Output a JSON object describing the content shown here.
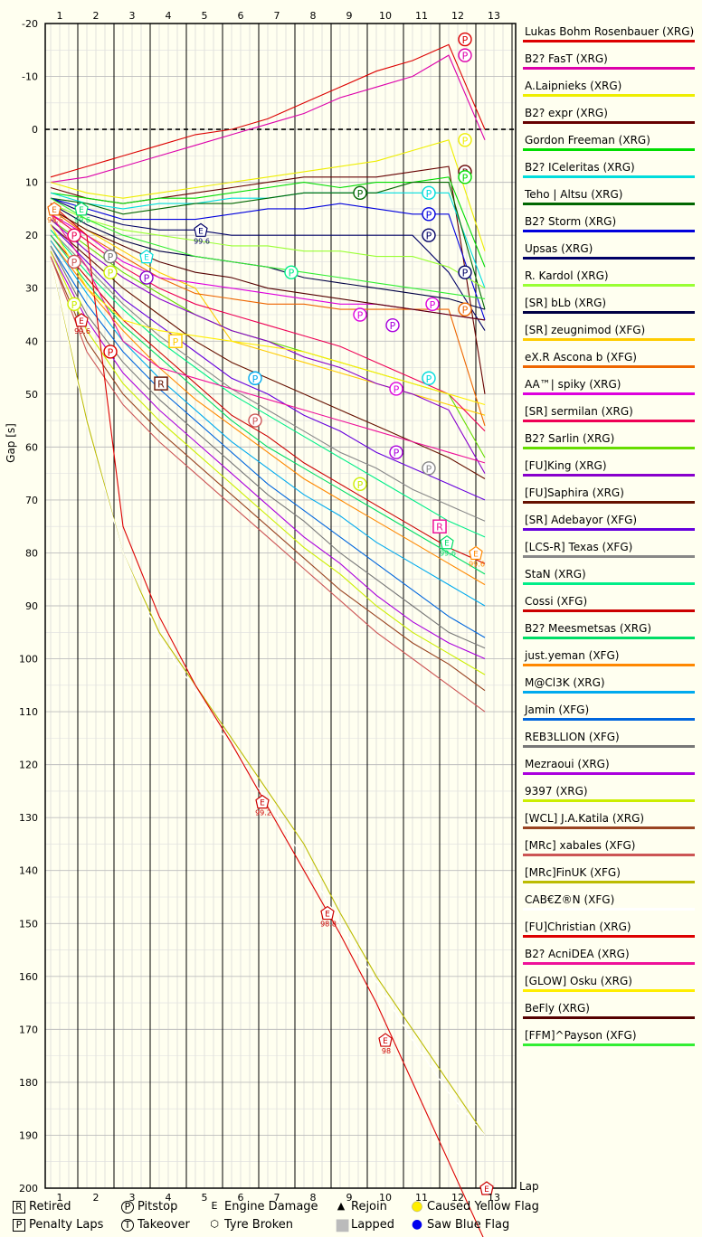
{
  "chart_data": {
    "type": "line",
    "title": "",
    "xlabel": "Lap",
    "ylabel": "Gap [s]",
    "xlim": [
      0.6,
      13.6
    ],
    "ylim": [
      -20,
      200
    ],
    "y_inverted": true,
    "x_ticks": [
      1,
      2,
      3,
      4,
      5,
      6,
      7,
      8,
      9,
      10,
      11,
      12,
      13
    ],
    "y_ticks": [
      -20,
      -10,
      0,
      10,
      20,
      30,
      40,
      50,
      60,
      70,
      80,
      90,
      100,
      110,
      120,
      130,
      140,
      150,
      160,
      170,
      180,
      190,
      200
    ],
    "grid": true,
    "legend_position": "right",
    "series": [
      {
        "name": "Lukas Bohm Rosenbauer (XRG)",
        "color": "#dd0000",
        "values": [
          9,
          7,
          5,
          3,
          1,
          0,
          -2,
          -5,
          -8,
          -11,
          -13,
          -16,
          0
        ]
      },
      {
        "name": "B2? FasT (XRG)",
        "color": "#dd00aa",
        "values": [
          10,
          9,
          7,
          5,
          3,
          1,
          -1,
          -3,
          -6,
          -8,
          -10,
          -14,
          2
        ]
      },
      {
        "name": "A.Laipnieks (XRG)",
        "color": "#eeee00",
        "values": [
          10,
          12,
          13,
          12,
          11,
          10,
          9,
          8,
          7,
          6,
          4,
          2,
          23
        ]
      },
      {
        "name": "B2? expr (XRG)",
        "color": "#660000",
        "values": [
          11,
          13,
          14,
          13,
          12,
          11,
          10,
          9,
          9,
          9,
          8,
          7,
          50
        ]
      },
      {
        "name": "Gordon Freeman (XRG)",
        "color": "#00dd00",
        "values": [
          12,
          13,
          14,
          13,
          13,
          12,
          11,
          10,
          11,
          10,
          10,
          9,
          26
        ]
      },
      {
        "name": "B2? ICeleritas (XRG)",
        "color": "#00dddd",
        "values": [
          12,
          14,
          15,
          14,
          14,
          13,
          13,
          12,
          12,
          12,
          12,
          12,
          30
        ]
      },
      {
        "name": "Teho | Altsu (XRG)",
        "color": "#006600",
        "values": [
          13,
          14,
          16,
          15,
          14,
          14,
          13,
          12,
          12,
          12,
          10,
          10,
          34
        ]
      },
      {
        "name": "B2? Storm (XRG)",
        "color": "#0000dd",
        "values": [
          13,
          15,
          17,
          17,
          17,
          16,
          15,
          15,
          14,
          15,
          16,
          16,
          36
        ]
      },
      {
        "name": "Upsas (XRG)",
        "color": "#000066",
        "values": [
          13,
          16,
          18,
          19,
          19,
          20,
          20,
          20,
          20,
          20,
          20,
          27,
          38
        ]
      },
      {
        "name": "R. Kardol (XRG)",
        "color": "#99ff33",
        "values": [
          14,
          17,
          19,
          20,
          21,
          22,
          22,
          23,
          23,
          24,
          24,
          26,
          30
        ]
      },
      {
        "name": "[SR] bLb (XRG)",
        "color": "#000044",
        "values": [
          14,
          18,
          21,
          23,
          24,
          25,
          26,
          28,
          29,
          30,
          31,
          32,
          34
        ]
      },
      {
        "name": "[SR] zeugnimod (XFG)",
        "color": "#ffcc00",
        "values": [
          15,
          19,
          23,
          27,
          30,
          40,
          42,
          44,
          46,
          48,
          50,
          52,
          54
        ]
      },
      {
        "name": "eX.R Ascona b (XFG)",
        "color": "#ee6600",
        "values": [
          15,
          20,
          24,
          28,
          31,
          32,
          33,
          33,
          34,
          34,
          34,
          34,
          56
        ]
      },
      {
        "name": "AA™| spiky (XRG)",
        "color": "#dd00dd",
        "values": [
          16,
          20,
          25,
          28,
          29,
          30,
          31,
          32,
          33,
          33,
          34,
          35,
          36
        ]
      },
      {
        "name": "[SR] sermilan (XRG)",
        "color": "#ee0055",
        "values": [
          16,
          21,
          26,
          30,
          33,
          35,
          37,
          39,
          41,
          44,
          47,
          50,
          57
        ]
      },
      {
        "name": "B2? Sarlin (XRG)",
        "color": "#66dd00",
        "values": [
          17,
          22,
          27,
          31,
          35,
          38,
          40,
          42,
          44,
          46,
          48,
          50,
          62
        ]
      },
      {
        "name": "[FU]King (XRG)",
        "color": "#8800cc",
        "values": [
          17,
          23,
          28,
          32,
          35,
          38,
          40,
          43,
          45,
          48,
          50,
          53,
          65
        ]
      },
      {
        "name": "[FU]Saphira (XRG)",
        "color": "#661100",
        "values": [
          18,
          24,
          30,
          35,
          40,
          44,
          47,
          50,
          53,
          56,
          59,
          62,
          66
        ]
      },
      {
        "name": "[SR] Adebayor (XFG)",
        "color": "#6600dd",
        "values": [
          18,
          25,
          32,
          37,
          42,
          47,
          50,
          54,
          57,
          61,
          64,
          67,
          70
        ]
      },
      {
        "name": "[LCS-R] Texas (XFG)",
        "color": "#888888",
        "values": [
          19,
          26,
          33,
          39,
          44,
          49,
          53,
          57,
          61,
          64,
          68,
          71,
          74
        ]
      },
      {
        "name": "StaN (XRG)",
        "color": "#00ee88",
        "values": [
          19,
          27,
          34,
          40,
          45,
          50,
          54,
          58,
          62,
          66,
          70,
          74,
          77
        ]
      },
      {
        "name": "Cossi (XFG)",
        "color": "#cc0000",
        "values": [
          20,
          28,
          36,
          42,
          48,
          54,
          58,
          63,
          67,
          71,
          75,
          79,
          82
        ]
      },
      {
        "name": "B2? Meesmetsas (XRG)",
        "color": "#00dd66",
        "values": [
          20,
          29,
          37,
          43,
          49,
          55,
          60,
          64,
          68,
          72,
          76,
          80,
          84
        ]
      },
      {
        "name": "just.yeman (XFG)",
        "color": "#ff8800",
        "values": [
          21,
          30,
          38,
          45,
          51,
          56,
          61,
          66,
          70,
          74,
          78,
          82,
          86
        ]
      },
      {
        "name": "M@Cl3K (XRG)",
        "color": "#00aaee",
        "values": [
          21,
          31,
          40,
          47,
          53,
          59,
          64,
          69,
          73,
          78,
          82,
          86,
          90
        ]
      },
      {
        "name": "Jamin (XFG)",
        "color": "#0066dd",
        "values": [
          22,
          33,
          42,
          49,
          55,
          61,
          67,
          72,
          77,
          82,
          87,
          92,
          96
        ]
      },
      {
        "name": "REB3LLION (XFG)",
        "color": "#777777",
        "values": [
          22,
          35,
          44,
          51,
          57,
          63,
          69,
          74,
          80,
          85,
          90,
          95,
          98
        ]
      },
      {
        "name": "Mezraoui (XRG)",
        "color": "#aa00dd",
        "values": [
          23,
          36,
          46,
          53,
          59,
          65,
          71,
          77,
          82,
          88,
          93,
          97,
          100
        ]
      },
      {
        "name": "9397 (XRG)",
        "color": "#ccee00",
        "values": [
          23,
          38,
          48,
          55,
          61,
          67,
          73,
          79,
          84,
          90,
          95,
          99,
          103
        ]
      },
      {
        "name": "[WCL] J.A.Katila (XRG)",
        "color": "#994422",
        "values": [
          24,
          40,
          50,
          57,
          63,
          69,
          75,
          81,
          87,
          92,
          97,
          101,
          106
        ]
      },
      {
        "name": "[MRc] xabales (XFG)",
        "color": "#cc5555",
        "values": [
          24,
          42,
          52,
          59,
          65,
          71,
          77,
          83,
          89,
          95,
          100,
          105,
          110
        ]
      },
      {
        "name": "[MRc]FinUK (XFG)",
        "color": "#bbbb00",
        "values": [
          25,
          55,
          80,
          95,
          105,
          115,
          125,
          135,
          148,
          160,
          170,
          180,
          190
        ]
      },
      {
        "name": "CAB€Z®N (XFG)",
        "color": "#ffffff",
        "values": [
          25,
          56,
          80,
          96,
          106,
          117,
          127,
          138,
          150,
          161,
          172,
          182,
          190
        ]
      },
      {
        "name": "[FU]Christian (XRG)",
        "color": "#dd0000",
        "values": [
          14,
          20,
          75,
          92,
          105,
          116,
          128,
          140,
          152,
          165,
          180,
          195,
          210
        ]
      },
      {
        "name": "B2? AcniDEA (XRG)",
        "color": "#ee1199",
        "values": [
          16,
          26,
          40,
          45,
          47,
          49,
          51,
          53,
          55,
          57,
          59,
          61,
          63
        ]
      },
      {
        "name": "[GLOW] Osku (XRG)",
        "color": "#ffee00",
        "values": [
          18,
          30,
          36,
          38,
          39,
          40,
          41,
          42,
          44,
          46,
          48,
          50,
          52
        ]
      },
      {
        "name": "BeFly (XRG)",
        "color": "#550000",
        "values": [
          15,
          19,
          22,
          25,
          27,
          28,
          30,
          31,
          32,
          33,
          34,
          35,
          36
        ]
      },
      {
        "name": "[FFM]^Payson (XFG)",
        "color": "#33ee33",
        "values": [
          13,
          17,
          20,
          22,
          24,
          25,
          26,
          27,
          28,
          29,
          30,
          31,
          32
        ]
      }
    ],
    "markers": [
      {
        "type": "pitstop",
        "x": 12.2,
        "y": -17,
        "color": "#dd0000"
      },
      {
        "type": "pitstop",
        "x": 12.2,
        "y": -14,
        "color": "#dd00aa"
      },
      {
        "type": "pitstop",
        "x": 12.2,
        "y": 27,
        "color": "#000066"
      },
      {
        "type": "pitstop",
        "x": 12.2,
        "y": 34,
        "color": "#ee6600"
      },
      {
        "type": "pitstop",
        "x": 11.2,
        "y": 16,
        "color": "#0000dd"
      },
      {
        "type": "pitstop",
        "x": 11.2,
        "y": 20,
        "color": "#000066"
      },
      {
        "type": "pitstop",
        "x": 11.2,
        "y": 12,
        "color": "#00dddd"
      },
      {
        "type": "pitstop",
        "x": 9.3,
        "y": 12,
        "color": "#006600"
      },
      {
        "type": "pitstop",
        "x": 9.3,
        "y": 35,
        "color": "#dd00dd"
      },
      {
        "type": "pitstop",
        "x": 10.2,
        "y": 37,
        "color": "#aa00dd"
      },
      {
        "type": "pitstop",
        "x": 10.3,
        "y": 49,
        "color": "#dd00dd"
      },
      {
        "type": "pitstop",
        "x": 10.3,
        "y": 61,
        "color": "#aa00dd"
      },
      {
        "type": "pitstop",
        "x": 11.3,
        "y": 33,
        "color": "#dd00dd"
      },
      {
        "type": "pitstop",
        "x": 11.2,
        "y": 47,
        "color": "#00dddd"
      },
      {
        "type": "pitstop",
        "x": 11.2,
        "y": 64,
        "color": "#888888"
      },
      {
        "type": "pitstop",
        "x": 9.3,
        "y": 67,
        "color": "#ccee00"
      },
      {
        "type": "pitstop",
        "x": 6.4,
        "y": 47,
        "color": "#00aaee"
      },
      {
        "type": "pitstop",
        "x": 6.4,
        "y": 55,
        "color": "#cc5555"
      },
      {
        "type": "pitstop",
        "x": 7.4,
        "y": 27,
        "color": "#00ee88"
      },
      {
        "type": "pitstop",
        "x": 3.4,
        "y": 28,
        "color": "#8800cc"
      },
      {
        "type": "pitstop",
        "x": 2.4,
        "y": 24,
        "color": "#777777"
      },
      {
        "type": "pitstop",
        "x": 2.4,
        "y": 27,
        "color": "#ccee00"
      },
      {
        "type": "pitstop",
        "x": 1.4,
        "y": 20,
        "color": "#ee0055"
      },
      {
        "type": "pitstop",
        "x": 1.4,
        "y": 25,
        "color": "#cc5555"
      },
      {
        "type": "pitstop",
        "x": 1.4,
        "y": 33,
        "color": "#ccee00"
      },
      {
        "type": "pitstop",
        "x": 2.4,
        "y": 42,
        "color": "#dd0000"
      },
      {
        "type": "pitstop",
        "x": 12.2,
        "y": 8,
        "color": "#660000"
      },
      {
        "type": "pitstop",
        "x": 12.2,
        "y": 9,
        "color": "#00dd00"
      },
      {
        "type": "pitstop",
        "x": 12.2,
        "y": 2,
        "color": "#eeee00"
      },
      {
        "type": "penalty",
        "x": 4.2,
        "y": 40,
        "color": "#ffcc00"
      },
      {
        "type": "penalty",
        "x": 11.5,
        "y": 75,
        "color": "#ee1199"
      },
      {
        "type": "retired",
        "x": 3.8,
        "y": 48,
        "color": "#661100"
      },
      {
        "type": "retired",
        "x": 11.5,
        "y": 75,
        "color": "#ee1199"
      },
      {
        "type": "engine",
        "x": 0.85,
        "y": 15,
        "color": "#ee6600",
        "label": "99.6"
      },
      {
        "type": "engine",
        "x": 1.6,
        "y": 15,
        "color": "#00dd66",
        "label": "99.6"
      },
      {
        "type": "engine",
        "x": 1.6,
        "y": 36,
        "color": "#cc0000",
        "label": "99.6"
      },
      {
        "type": "engine",
        "x": 3.4,
        "y": 24,
        "color": "#00dddd",
        "label": ""
      },
      {
        "type": "engine",
        "x": 4.9,
        "y": 19,
        "color": "#000066",
        "label": "99.6"
      },
      {
        "type": "engine",
        "x": 6.6,
        "y": 127,
        "color": "#cc0000",
        "label": "99.2"
      },
      {
        "type": "engine",
        "x": 8.4,
        "y": 148,
        "color": "#cc0000",
        "label": "98.8"
      },
      {
        "type": "engine",
        "x": 10.0,
        "y": 172,
        "color": "#cc0000",
        "label": "98"
      },
      {
        "type": "engine",
        "x": 11.7,
        "y": 78,
        "color": "#00dd66",
        "label": "99.6"
      },
      {
        "type": "engine",
        "x": 12.5,
        "y": 80,
        "color": "#ff8800",
        "label": "99.6"
      },
      {
        "type": "engine",
        "x": 12.8,
        "y": 200,
        "color": "#cc0000",
        "label": ""
      }
    ]
  },
  "key": [
    {
      "symbol": "R",
      "symbol_name": "retired-symbol",
      "label": "Retired"
    },
    {
      "symbol": "P",
      "symbol_name": "pitstop-symbol",
      "label": "Pitstop"
    },
    {
      "symbol": "E",
      "symbol_name": "engine-damage-symbol",
      "label": "Engine Damage"
    },
    {
      "symbol": "▲",
      "symbol_name": "rejoin-symbol",
      "label": "Rejoin"
    },
    {
      "symbol": "●",
      "symbol_name": "yellow-flag-symbol",
      "label": "Caused Yellow Flag",
      "color": "#ffee00"
    },
    {
      "symbol": "P",
      "symbol_name": "penalty-laps-symbol",
      "label": "Penalty Laps"
    },
    {
      "symbol": "T",
      "symbol_name": "takeover-symbol",
      "label": "Takeover"
    },
    {
      "symbol": "⬡",
      "symbol_name": "tyre-broken-symbol",
      "label": "Tyre Broken"
    },
    {
      "symbol": "■",
      "symbol_name": "lapped-symbol",
      "label": "Lapped",
      "color": "#bbbbbb"
    },
    {
      "symbol": "●",
      "symbol_name": "blue-flag-symbol",
      "label": "Saw Blue Flag",
      "color": "#0000ee"
    }
  ]
}
